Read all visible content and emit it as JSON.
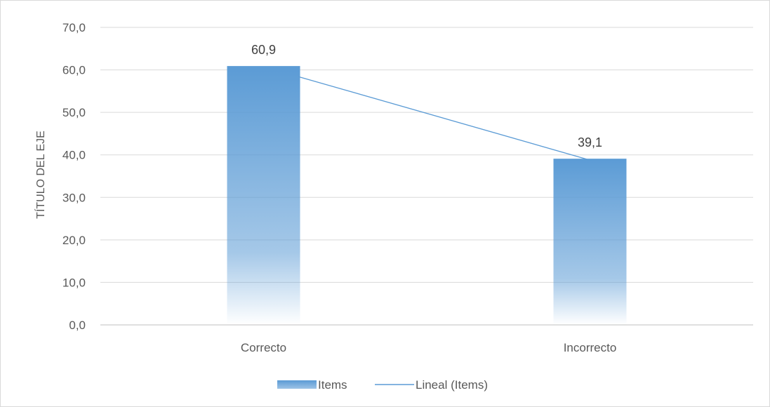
{
  "chart_data": {
    "type": "bar",
    "categories": [
      "Correcto",
      "Incorrecto"
    ],
    "series": [
      {
        "name": "Items",
        "values": [
          60.9,
          39.1
        ]
      }
    ],
    "trendline": {
      "name": "Lineal (Items)",
      "type": "linear",
      "series": "Items"
    },
    "data_labels": [
      "60,9",
      "39,1"
    ],
    "title": "",
    "xlabel": "",
    "ylabel": "TÍTULO DEL EJE",
    "ylim": [
      0,
      70
    ],
    "yticks": [
      0,
      10,
      20,
      30,
      40,
      50,
      60,
      70
    ],
    "ytick_labels": [
      "0,0",
      "10,0",
      "20,0",
      "30,0",
      "40,0",
      "50,0",
      "60,0",
      "70,0"
    ],
    "grid": true,
    "legend_position": "bottom",
    "colors": {
      "bar": "#5b9bd5",
      "trendline": "#5b9bd5",
      "grid": "#d9d9d9",
      "text": "#595959"
    }
  },
  "legend": {
    "bar_label": "Items",
    "line_label": "Lineal (Items)"
  }
}
